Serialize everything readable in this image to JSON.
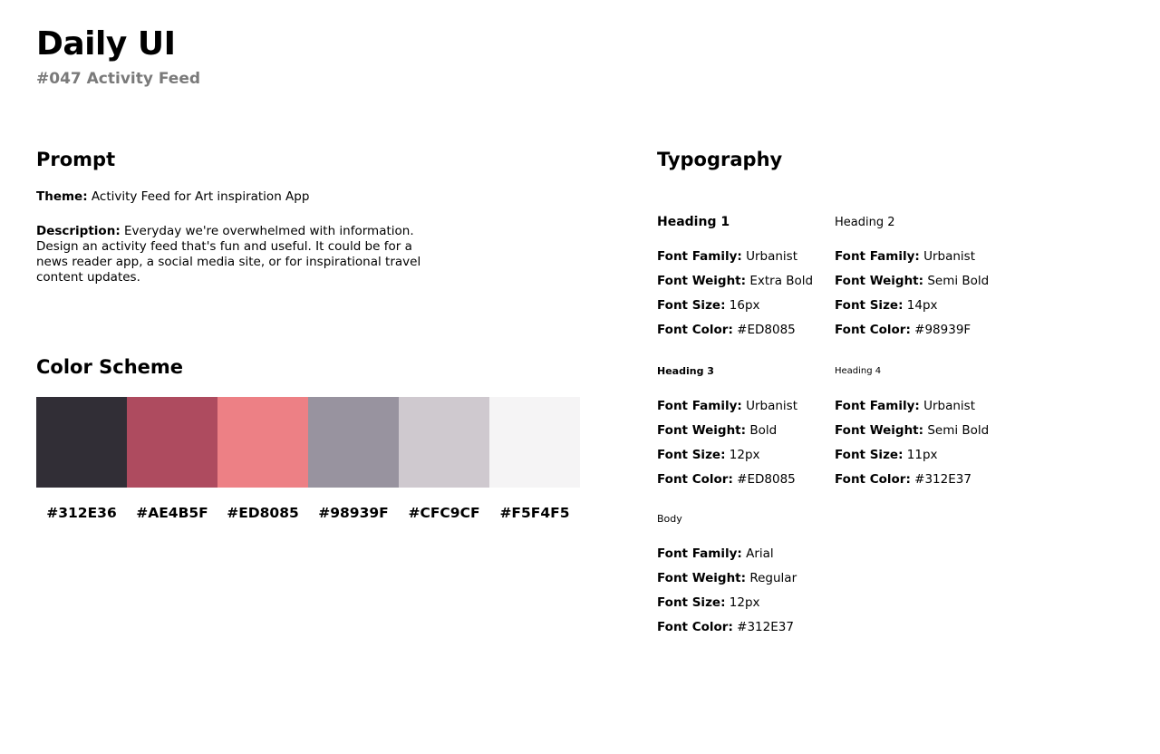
{
  "header": {
    "title": "Daily UI",
    "subtitle": "#047 Activity Feed"
  },
  "prompt": {
    "heading": "Prompt",
    "theme": {
      "label": "Theme:",
      "text": "Activity Feed for Art inspiration App"
    },
    "description": {
      "label": "Description:",
      "text": "Everyday we're overwhelmed with information. Design an activity feed that's fun and useful. It could be for a news reader app, a social media site, or for inspirational travel content updates."
    }
  },
  "color_scheme": {
    "heading": "Color Scheme",
    "swatches": [
      "#312E36",
      "#AE4B5F",
      "#ED8085",
      "#98939F",
      "#CFC9CF",
      "#F5F4F5"
    ]
  },
  "typography": {
    "heading": "Typography",
    "styles": [
      {
        "name": "Heading 1",
        "fields": [
          {
            "label": "Font Family:",
            "value": "Urbanist"
          },
          {
            "label": "Font Weight:",
            "value": "Extra Bold"
          },
          {
            "label": "Font Size:",
            "value": "16px"
          },
          {
            "label": "Font Color:",
            "value": "#ED8085"
          }
        ]
      },
      {
        "name": "Heading 2",
        "fields": [
          {
            "label": "Font Family:",
            "value": "Urbanist"
          },
          {
            "label": "Font Weight:",
            "value": "Semi Bold"
          },
          {
            "label": "Font Size:",
            "value": "14px"
          },
          {
            "label": "Font Color:",
            "value": "#98939F"
          }
        ]
      },
      {
        "name": "Heading 3",
        "fields": [
          {
            "label": "Font Family:",
            "value": "Urbanist"
          },
          {
            "label": "Font Weight:",
            "value": "Bold"
          },
          {
            "label": "Font Size:",
            "value": "12px"
          },
          {
            "label": "Font Color:",
            "value": "#ED8085"
          }
        ]
      },
      {
        "name": "Heading 4",
        "fields": [
          {
            "label": "Font Family:",
            "value": "Urbanist"
          },
          {
            "label": "Font Weight:",
            "value": "Semi Bold"
          },
          {
            "label": "Font Size:",
            "value": "11px"
          },
          {
            "label": "Font Color:",
            "value": "#312E37"
          }
        ]
      },
      {
        "name": "Body",
        "fields": [
          {
            "label": "Font Family:",
            "value": "Arial"
          },
          {
            "label": "Font Weight:",
            "value": "Regular"
          },
          {
            "label": "Font Size:",
            "value": "12px"
          },
          {
            "label": "Font Color:",
            "value": "#312E37"
          }
        ]
      }
    ]
  }
}
